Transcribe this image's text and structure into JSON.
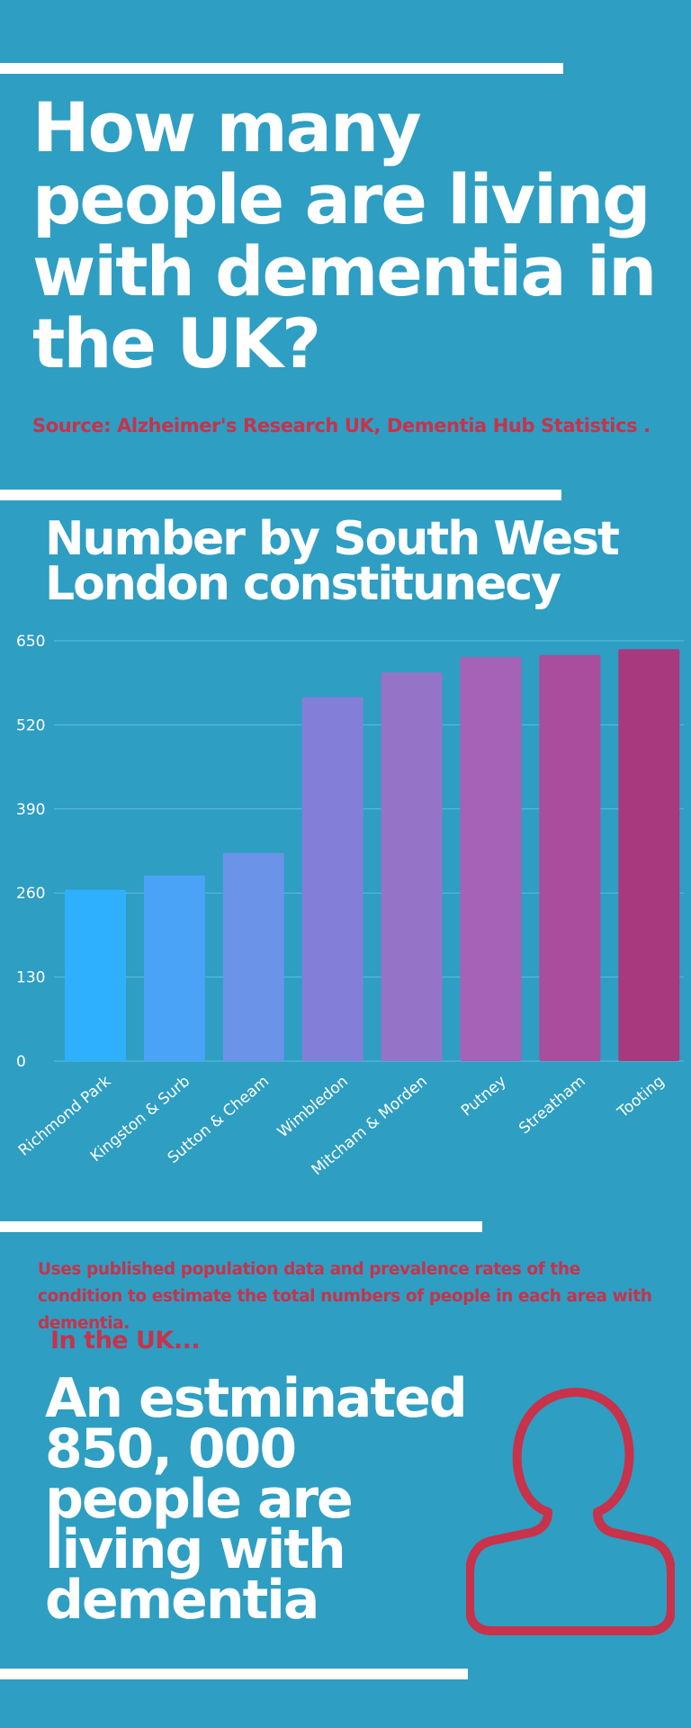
{
  "title": "How many people are living with dementia in the UK?",
  "source": "Source: Alzheimer's Research UK, Dementia Hub Statistics .",
  "chart_data": {
    "type": "bar",
    "title": "Number by South West London constitunecy",
    "categories": [
      "Richmond Park",
      "Kingston & Surb",
      "Sutton & Cheam",
      "Wimbledon",
      "Mitcham & Morden",
      "Putney",
      "Streatham",
      "Tooting"
    ],
    "values": [
      265,
      287,
      322,
      563,
      601,
      625,
      628,
      637
    ],
    "ylim": [
      0,
      650
    ],
    "yticks": [
      0,
      130,
      260,
      390,
      520,
      650
    ],
    "grid": true,
    "bar_colors": [
      "#2fb0ff",
      "#4ba3f7",
      "#6b93e8",
      "#837fd9",
      "#9574c8",
      "#a562b6",
      "#aa4d9d",
      "#a8397f"
    ]
  },
  "note": "Uses published population data and prevalence rates of the condition to estimate the total numbers of people in each area with dementia.",
  "intro": "In the UK...",
  "headline": "An estminated 850, 000 people  are living with dementia",
  "icon": "person-outline-icon",
  "colors": {
    "background": "#2e9ec3",
    "accent": "#c8324a",
    "text": "#ffffff"
  }
}
